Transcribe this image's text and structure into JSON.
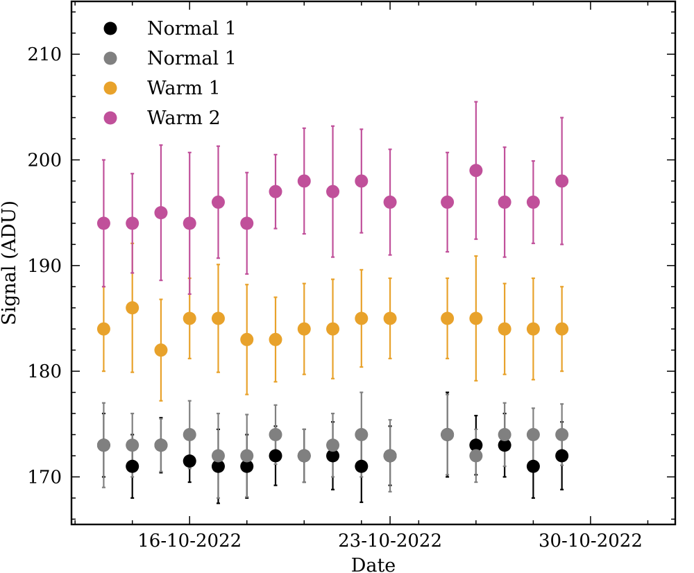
{
  "chart_data": {
    "type": "scatter",
    "xlabel": "Date",
    "ylabel": "Signal (ADU)",
    "ylim": [
      165.5,
      215
    ],
    "xlim": [
      "2022-10-11 21:00",
      "2022-11-01 23:00"
    ],
    "yticks": [
      170,
      180,
      190,
      200,
      210
    ],
    "xticks": [
      "2022-10-16",
      "2022-10-23",
      "2022-10-30"
    ],
    "xticklabels": [
      "16-10-2022",
      "23-10-2022",
      "30-10-2022"
    ],
    "legend_position": "top-left",
    "grid": false,
    "series": [
      {
        "name": "Normal 1",
        "color": "#000000",
        "points": [
          {
            "x": "2022-10-13",
            "y": 173.0,
            "yerr": 3.0
          },
          {
            "x": "2022-10-14",
            "y": 171.0,
            "yerr": 3.0
          },
          {
            "x": "2022-10-15",
            "y": 173.0,
            "yerr": 2.6
          },
          {
            "x": "2022-10-16",
            "y": 171.5,
            "yerr": 2.0
          },
          {
            "x": "2022-10-17",
            "y": 171.0,
            "yerr": 3.5
          },
          {
            "x": "2022-10-18",
            "y": 171.0,
            "yerr": 3.0
          },
          {
            "x": "2022-10-19",
            "y": 172.0,
            "yerr": 2.8
          },
          {
            "x": "2022-10-20",
            "y": 172.0,
            "yerr": 2.5
          },
          {
            "x": "2022-10-21",
            "y": 172.0,
            "yerr": 3.2
          },
          {
            "x": "2022-10-22",
            "y": 171.0,
            "yerr": 3.4
          },
          {
            "x": "2022-10-23",
            "y": 172.0,
            "yerr": 2.8
          },
          {
            "x": "2022-10-25",
            "y": 174.0,
            "yerr": 4.0
          },
          {
            "x": "2022-10-26",
            "y": 173.0,
            "yerr": 2.8
          },
          {
            "x": "2022-10-27",
            "y": 173.0,
            "yerr": 3.0
          },
          {
            "x": "2022-10-28",
            "y": 171.0,
            "yerr": 3.0
          },
          {
            "x": "2022-10-29",
            "y": 172.0,
            "yerr": 3.2
          }
        ]
      },
      {
        "name": "Normal 1",
        "color": "#808080",
        "points": [
          {
            "x": "2022-10-13",
            "y": 173.0,
            "yerr": 4.0
          },
          {
            "x": "2022-10-14",
            "y": 173.0,
            "yerr": 3.0
          },
          {
            "x": "2022-10-15",
            "y": 173.0,
            "yerr": 2.5
          },
          {
            "x": "2022-10-16",
            "y": 174.0,
            "yerr": 3.2
          },
          {
            "x": "2022-10-17",
            "y": 172.0,
            "yerr": 4.0
          },
          {
            "x": "2022-10-18",
            "y": 172.0,
            "yerr": 3.9
          },
          {
            "x": "2022-10-19",
            "y": 174.0,
            "yerr": 2.8
          },
          {
            "x": "2022-10-20",
            "y": 172.0,
            "yerr": 2.5
          },
          {
            "x": "2022-10-21",
            "y": 173.0,
            "yerr": 3.0
          },
          {
            "x": "2022-10-22",
            "y": 174.0,
            "yerr": 4.0
          },
          {
            "x": "2022-10-23",
            "y": 172.0,
            "yerr": 3.4
          },
          {
            "x": "2022-10-25",
            "y": 174.0,
            "yerr": 3.8
          },
          {
            "x": "2022-10-26",
            "y": 172.0,
            "yerr": 2.5
          },
          {
            "x": "2022-10-27",
            "y": 174.0,
            "yerr": 3.0
          },
          {
            "x": "2022-10-28",
            "y": 174.0,
            "yerr": 2.5
          },
          {
            "x": "2022-10-29",
            "y": 174.0,
            "yerr": 2.9
          }
        ]
      },
      {
        "name": "Warm 1",
        "color": "#e8a22b",
        "points": [
          {
            "x": "2022-10-13",
            "y": 184.0,
            "yerr": 4.0
          },
          {
            "x": "2022-10-14",
            "y": 186.0,
            "yerr": 6.1
          },
          {
            "x": "2022-10-15",
            "y": 182.0,
            "yerr": 4.8
          },
          {
            "x": "2022-10-16",
            "y": 185.0,
            "yerr": 3.8
          },
          {
            "x": "2022-10-17",
            "y": 185.0,
            "yerr": 5.1
          },
          {
            "x": "2022-10-18",
            "y": 183.0,
            "yerr": 5.2
          },
          {
            "x": "2022-10-19",
            "y": 183.0,
            "yerr": 4.0
          },
          {
            "x": "2022-10-20",
            "y": 184.0,
            "yerr": 4.3
          },
          {
            "x": "2022-10-21",
            "y": 184.0,
            "yerr": 4.7
          },
          {
            "x": "2022-10-22",
            "y": 185.0,
            "yerr": 4.6
          },
          {
            "x": "2022-10-23",
            "y": 185.0,
            "yerr": 3.8
          },
          {
            "x": "2022-10-25",
            "y": 185.0,
            "yerr": 3.8
          },
          {
            "x": "2022-10-26",
            "y": 185.0,
            "yerr": 5.9
          },
          {
            "x": "2022-10-27",
            "y": 184.0,
            "yerr": 4.3
          },
          {
            "x": "2022-10-28",
            "y": 184.0,
            "yerr": 4.8
          },
          {
            "x": "2022-10-29",
            "y": 184.0,
            "yerr": 4.0
          }
        ]
      },
      {
        "name": "Warm 2",
        "color": "#c0509a",
        "points": [
          {
            "x": "2022-10-13",
            "y": 194.0,
            "yerr": 6.0
          },
          {
            "x": "2022-10-14",
            "y": 194.0,
            "yerr": 4.7
          },
          {
            "x": "2022-10-15",
            "y": 195.0,
            "yerr": 6.4
          },
          {
            "x": "2022-10-16",
            "y": 194.0,
            "yerr": 6.7
          },
          {
            "x": "2022-10-17",
            "y": 196.0,
            "yerr": 5.3
          },
          {
            "x": "2022-10-18",
            "y": 194.0,
            "yerr": 4.8
          },
          {
            "x": "2022-10-19",
            "y": 197.0,
            "yerr": 3.5
          },
          {
            "x": "2022-10-20",
            "y": 198.0,
            "yerr": 5.0
          },
          {
            "x": "2022-10-21",
            "y": 197.0,
            "yerr": 6.2
          },
          {
            "x": "2022-10-22",
            "y": 198.0,
            "yerr": 4.9
          },
          {
            "x": "2022-10-23",
            "y": 196.0,
            "yerr": 5.0
          },
          {
            "x": "2022-10-25",
            "y": 196.0,
            "yerr": 4.7
          },
          {
            "x": "2022-10-26",
            "y": 199.0,
            "yerr": 6.5
          },
          {
            "x": "2022-10-27",
            "y": 196.0,
            "yerr": 5.2
          },
          {
            "x": "2022-10-28",
            "y": 196.0,
            "yerr": 3.9
          },
          {
            "x": "2022-10-29",
            "y": 198.0,
            "yerr": 6.0
          }
        ]
      }
    ]
  }
}
